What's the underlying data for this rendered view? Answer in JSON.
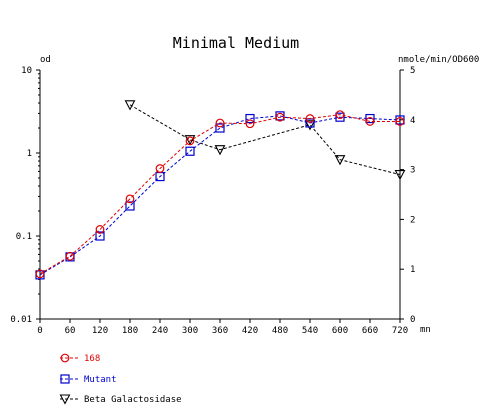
{
  "chart_data": {
    "type": "line",
    "title": "Minimal Medium",
    "xlabel": "mn",
    "ylabel_left": "od",
    "ylabel_right": "nmole/min/OD600",
    "x_ticks": [
      0,
      60,
      120,
      180,
      240,
      300,
      360,
      420,
      480,
      540,
      600,
      660,
      720
    ],
    "x_tick_labels": [
      "0",
      "60",
      "120",
      "180",
      "240",
      "300",
      "360",
      "420",
      "480",
      "540",
      "600",
      "660",
      "720"
    ],
    "xlim": [
      0,
      720
    ],
    "y_left_scale": "log",
    "y_left_lim": [
      0.01,
      10
    ],
    "y_left_tick_labels": [
      "10",
      "1",
      "0.1",
      "0.01"
    ],
    "y_left_tick_values": [
      10,
      1,
      0.1,
      0.01
    ],
    "y_right_lim": [
      0,
      5
    ],
    "y_right_tick_labels": [
      "5",
      "4",
      "3",
      "2",
      "1",
      "0"
    ],
    "y_right_tick_values": [
      5,
      4,
      3,
      2,
      1,
      0
    ],
    "legend_position": "bottom-left",
    "series": [
      {
        "name": "168",
        "axis": "left",
        "marker": "circle",
        "color": "#e00000",
        "x": [
          0,
          60,
          120,
          180,
          240,
          300,
          360,
          420,
          480,
          540,
          600,
          660,
          720
        ],
        "values": [
          0.035,
          0.057,
          0.12,
          0.28,
          0.65,
          1.4,
          2.3,
          2.25,
          2.7,
          2.6,
          2.9,
          2.4,
          2.4
        ]
      },
      {
        "name": "Mutant",
        "axis": "left",
        "marker": "square",
        "color": "#0000d0",
        "x": [
          0,
          60,
          120,
          180,
          240,
          300,
          360,
          420,
          480,
          540,
          600,
          660,
          720
        ],
        "values": [
          0.034,
          0.056,
          0.1,
          0.23,
          0.52,
          1.05,
          2.0,
          2.6,
          2.8,
          2.3,
          2.7,
          2.6,
          2.5
        ]
      },
      {
        "name": "Beta Galactosidase",
        "axis": "right",
        "marker": "triangle-down",
        "color": "#000000",
        "x": [
          180,
          300,
          360,
          540,
          600,
          720
        ],
        "values": [
          4.3,
          3.6,
          3.4,
          3.9,
          3.2,
          2.9
        ]
      }
    ]
  }
}
